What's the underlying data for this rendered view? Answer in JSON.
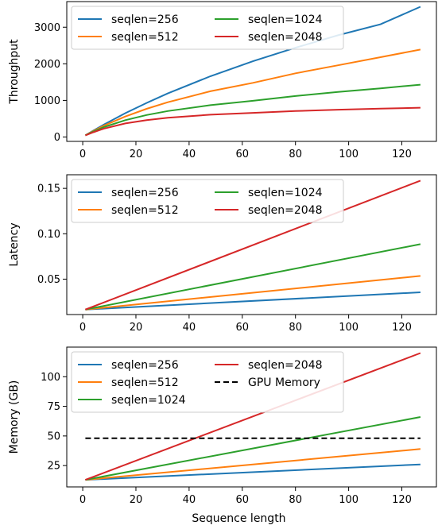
{
  "chart_data": [
    {
      "type": "line",
      "title": "",
      "xlabel": "",
      "ylabel": "Throughput",
      "xlim": [
        -6,
        133
      ],
      "ylim": [
        -120,
        3700
      ],
      "xticks": [
        0,
        20,
        40,
        60,
        80,
        100,
        120
      ],
      "yticks": [
        0,
        1000,
        2000,
        3000
      ],
      "legend": "top-left",
      "series": [
        {
          "name": "seqlen=256",
          "color": "#1f77b4",
          "x": [
            1,
            4,
            8,
            16,
            24,
            32,
            48,
            64,
            80,
            96,
            112,
            127
          ],
          "y": [
            46,
            175,
            340,
            650,
            930,
            1190,
            1660,
            2070,
            2440,
            2780,
            3080,
            3560
          ]
        },
        {
          "name": "seqlen=512",
          "color": "#ff7f0e",
          "x": [
            1,
            4,
            8,
            16,
            24,
            32,
            48,
            64,
            80,
            96,
            112,
            127
          ],
          "y": [
            45,
            165,
            310,
            560,
            770,
            950,
            1250,
            1480,
            1740,
            1960,
            2180,
            2390
          ]
        },
        {
          "name": "seqlen=1024",
          "color": "#2ca02c",
          "x": [
            1,
            4,
            8,
            16,
            24,
            32,
            48,
            64,
            80,
            96,
            112,
            127
          ],
          "y": [
            44,
            150,
            270,
            460,
            600,
            710,
            870,
            990,
            1120,
            1230,
            1330,
            1430
          ]
        },
        {
          "name": "seqlen=2048",
          "color": "#d62728",
          "x": [
            1,
            4,
            8,
            16,
            24,
            32,
            48,
            64,
            80,
            96,
            112,
            127
          ],
          "y": [
            42,
            130,
            230,
            370,
            460,
            525,
            610,
            660,
            710,
            745,
            775,
            800
          ]
        }
      ]
    },
    {
      "type": "line",
      "title": "",
      "xlabel": "",
      "ylabel": "Latency",
      "xlim": [
        -6,
        133
      ],
      "ylim": [
        0.011,
        0.165
      ],
      "xticks": [
        0,
        20,
        40,
        60,
        80,
        100,
        120
      ],
      "yticks": [
        0.05,
        0.1,
        0.15
      ],
      "ytick_labels": [
        "0.05",
        "0.10",
        "0.15"
      ],
      "legend": "top-left",
      "series": [
        {
          "name": "seqlen=256",
          "color": "#1f77b4",
          "x": [
            1,
            127
          ],
          "y": [
            0.0165,
            0.0355
          ]
        },
        {
          "name": "seqlen=512",
          "color": "#ff7f0e",
          "x": [
            1,
            127
          ],
          "y": [
            0.0165,
            0.0535
          ]
        },
        {
          "name": "seqlen=1024",
          "color": "#2ca02c",
          "x": [
            1,
            127
          ],
          "y": [
            0.0165,
            0.0885
          ]
        },
        {
          "name": "seqlen=2048",
          "color": "#d62728",
          "x": [
            1,
            127
          ],
          "y": [
            0.0165,
            0.1585
          ]
        }
      ]
    },
    {
      "type": "line",
      "title": "",
      "xlabel": "Sequence length",
      "ylabel": "Memory (GB)",
      "xlim": [
        -6,
        133
      ],
      "ylim": [
        7,
        125
      ],
      "xticks": [
        0,
        20,
        40,
        60,
        80,
        100,
        120
      ],
      "yticks": [
        25,
        50,
        75,
        100
      ],
      "legend": "top-left",
      "series": [
        {
          "name": "seqlen=256",
          "color": "#1f77b4",
          "x": [
            1,
            127
          ],
          "y": [
            13,
            26
          ]
        },
        {
          "name": "seqlen=512",
          "color": "#ff7f0e",
          "x": [
            1,
            127
          ],
          "y": [
            13,
            39
          ]
        },
        {
          "name": "seqlen=1024",
          "color": "#2ca02c",
          "x": [
            1,
            127
          ],
          "y": [
            13,
            66
          ]
        },
        {
          "name": "seqlen=2048",
          "color": "#d62728",
          "x": [
            1,
            127
          ],
          "y": [
            13,
            120
          ]
        },
        {
          "name": "GPU Memory",
          "color": "#000000",
          "dashed": true,
          "x": [
            1,
            127
          ],
          "y": [
            48,
            48
          ]
        }
      ]
    }
  ]
}
